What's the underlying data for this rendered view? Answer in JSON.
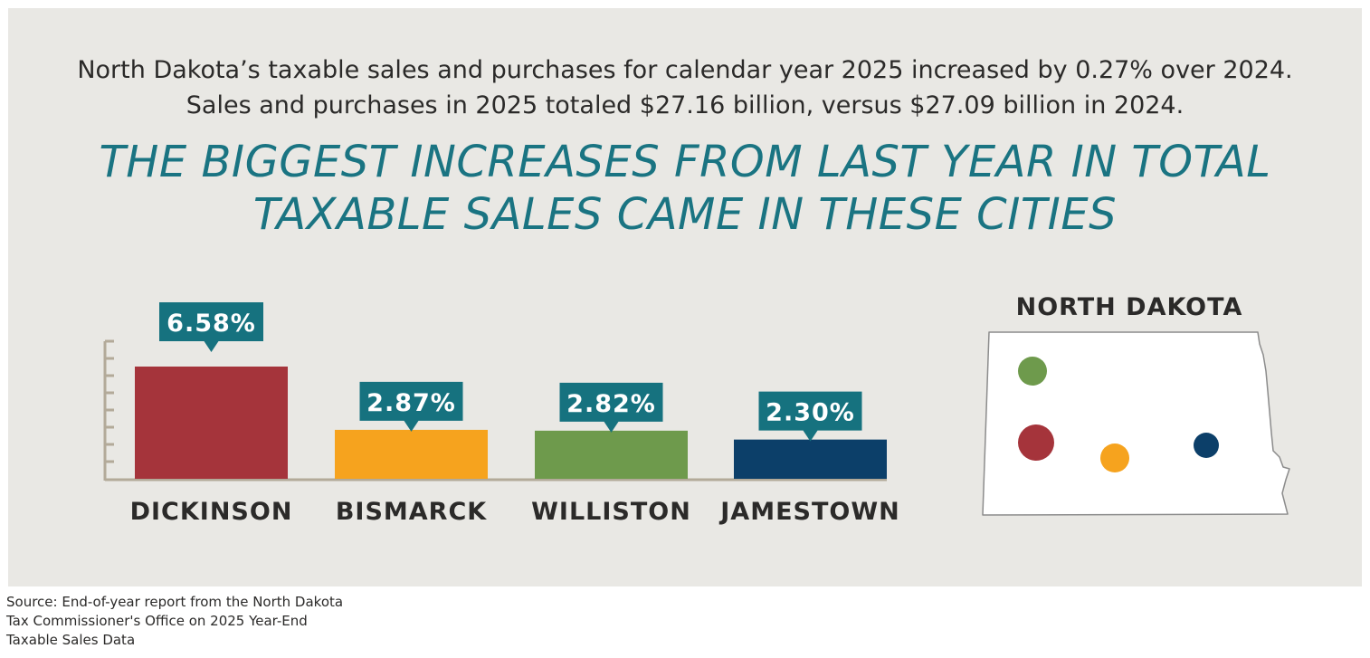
{
  "intro": {
    "line1": "North Dakota’s taxable sales and purchases for calendar year 2025 increased by 0.27% over 2024.",
    "line2": "Sales and purchases in 2025 totaled $27.16 billion, versus $27.09 billion in 2024."
  },
  "headline": {
    "line1": "THE BIGGEST INCREASES FROM LAST YEAR IN TOTAL",
    "line2": "TAXABLE SALES CAME IN THESE CITIES"
  },
  "chart_data": {
    "type": "bar",
    "title": "THE BIGGEST INCREASES FROM LAST YEAR IN TOTAL TAXABLE SALES CAME IN THESE CITIES",
    "categories": [
      "DICKINSON",
      "BISMARCK",
      "WILLISTON",
      "JAMESTOWN"
    ],
    "values": [
      6.58,
      2.87,
      2.82,
      2.3
    ],
    "value_labels": [
      "6.58%",
      "2.87%",
      "2.82%",
      "2.30%"
    ],
    "units": "%",
    "colors": [
      "#a5343b",
      "#f6a31e",
      "#6e9a4c",
      "#0c3f69"
    ],
    "label_color": "#16727f",
    "ylim": [
      0,
      8
    ],
    "xlabel": "",
    "ylabel": ""
  },
  "map": {
    "title": "NORTH DAKOTA",
    "cities": [
      {
        "name": "WILLISTON",
        "color": "#6e9a4c"
      },
      {
        "name": "DICKINSON",
        "color": "#a5343b"
      },
      {
        "name": "BISMARCK",
        "color": "#f6a31e"
      },
      {
        "name": "JAMESTOWN",
        "color": "#0c3f69"
      }
    ]
  },
  "source": {
    "line1": "Source: End-of-year report from the North Dakota",
    "line2": "Tax Commissioner's Office on 2025 Year-End",
    "line3": "Taxable Sales Data"
  }
}
